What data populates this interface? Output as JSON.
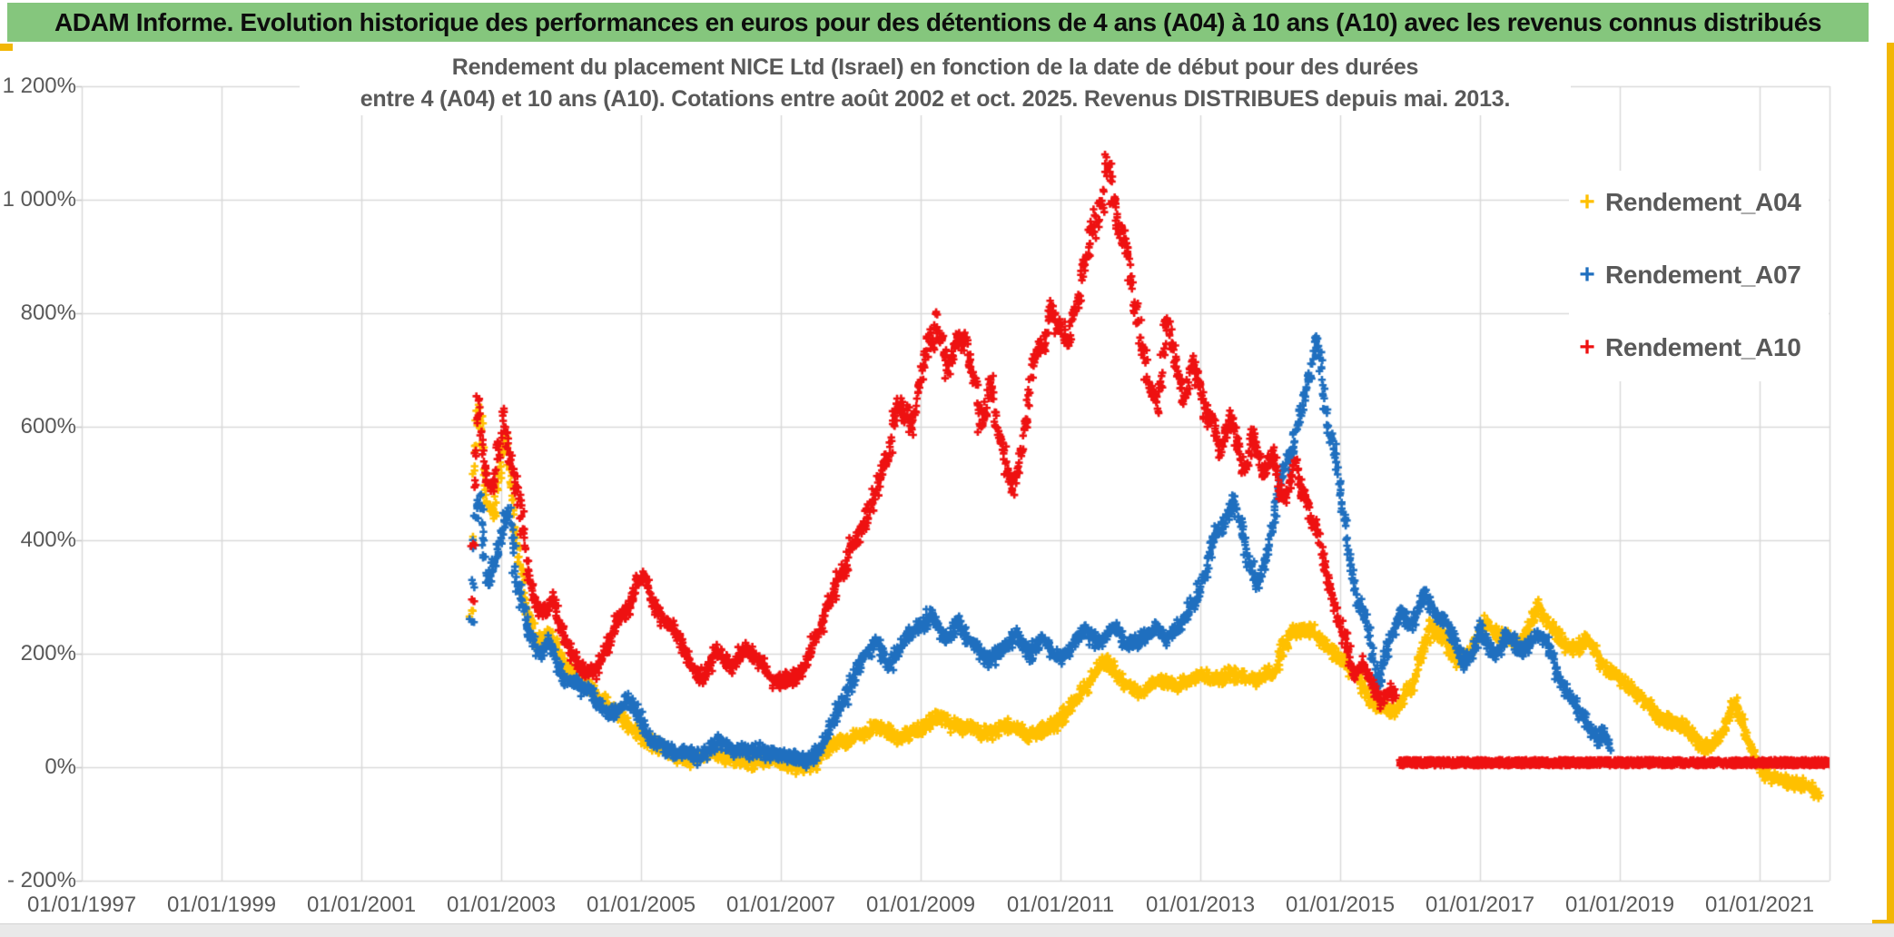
{
  "header": {
    "title": "ADAM Informe. Evolution historique des performances en euros pour des détentions de 4 ans (A04) à 10 ans (A10) avec les revenus connus distribués",
    "bg_color": "#85C67D",
    "text_color": "#0d0d0d"
  },
  "accents": {
    "gold": "#F2B705",
    "grid_color": "#D9D9D9",
    "axis_text_color": "#595959"
  },
  "chart_data": {
    "type": "scatter",
    "marker": "plus",
    "title_lines": [
      "Rendement du placement NICE Ltd (Israel) en fonction de la date de début pour des durées",
      "entre 4 (A04) et 10 ans (A10). Cotations entre août 2002 et oct. 2025. Revenus DISTRIBUES depuis mai. 2013."
    ],
    "grid": "on",
    "legend_position": "right-top",
    "x_axis": {
      "tick_labels": [
        "01/01/1997",
        "01/01/1999",
        "01/01/2001",
        "01/01/2003",
        "01/01/2005",
        "01/01/2007",
        "01/01/2009",
        "01/01/2011",
        "01/01/2013",
        "01/01/2015",
        "01/01/2017",
        "01/01/2019",
        "01/01/2021"
      ],
      "tick_years": [
        1997,
        1999,
        2001,
        2003,
        2005,
        2007,
        2009,
        2011,
        2013,
        2015,
        2017,
        2019,
        2021
      ],
      "range_years": [
        1997,
        2023
      ]
    },
    "y_axis": {
      "tick_labels": [
        "1 200%",
        "1 000%",
        "800%",
        "600%",
        "400%",
        "200%",
        "0%",
        "- 200%"
      ],
      "tick_values": [
        1200,
        1000,
        800,
        600,
        400,
        200,
        0,
        -200
      ],
      "range_pct": [
        -200,
        1200
      ],
      "grid_step_pct": 200
    },
    "series": [
      {
        "name": "Rendement_A04",
        "color": "#FFC000",
        "volatility": 9,
        "anchors_t": [
          2002.58,
          2002.62,
          2002.68,
          2002.78,
          2002.9,
          2003.0,
          2003.08,
          2003.2,
          2003.35,
          2003.5,
          2003.7,
          2003.95,
          2004.2,
          2004.5,
          2004.8,
          2005.1,
          2005.4,
          2005.7,
          2006.0,
          2006.3,
          2006.6,
          2006.9,
          2007.2,
          2007.5,
          2007.8,
          2008.1,
          2008.4,
          2008.7,
          2009.0,
          2009.3,
          2009.6,
          2009.9,
          2010.2,
          2010.5,
          2010.8,
          2011.1,
          2011.4,
          2011.65,
          2011.9,
          2012.15,
          2012.4,
          2012.65,
          2012.9,
          2013.2,
          2013.5,
          2013.8,
          2014.05,
          2014.3,
          2014.55,
          2014.8,
          2015.05,
          2015.3,
          2015.55,
          2015.8,
          2016.05,
          2016.3,
          2016.5,
          2016.7,
          2016.9,
          2017.1,
          2017.35,
          2017.6,
          2017.85,
          2018.05,
          2018.3,
          2018.55,
          2018.8,
          2019.05,
          2019.3,
          2019.6,
          2019.9,
          2020.2,
          2020.45,
          2020.65,
          2020.85,
          2021.05,
          2021.3,
          2021.55,
          2021.85
        ],
        "anchors_v": [
          280,
          540,
          660,
          480,
          430,
          540,
          570,
          420,
          290,
          215,
          235,
          170,
          150,
          115,
          70,
          45,
          25,
          12,
          25,
          12,
          8,
          18,
          2,
          12,
          40,
          55,
          70,
          55,
          70,
          90,
          70,
          60,
          70,
          55,
          65,
          95,
          150,
          190,
          150,
          130,
          155,
          140,
          150,
          155,
          160,
          155,
          175,
          230,
          245,
          210,
          190,
          150,
          105,
          95,
          150,
          250,
          225,
          185,
          205,
          255,
          225,
          215,
          290,
          245,
          205,
          225,
          175,
          150,
          120,
          85,
          75,
          40,
          55,
          120,
          40,
          -5,
          -20,
          -25,
          -45
        ]
      },
      {
        "name": "Rendement_A07",
        "color": "#1F6FBF",
        "volatility": 12,
        "anchors_t": [
          2002.58,
          2002.63,
          2002.7,
          2002.8,
          2002.92,
          2003.02,
          2003.1,
          2003.22,
          2003.38,
          2003.55,
          2003.7,
          2003.9,
          2004.1,
          2004.35,
          2004.6,
          2004.85,
          2005.1,
          2005.35,
          2005.6,
          2005.85,
          2006.1,
          2006.35,
          2006.6,
          2006.85,
          2007.1,
          2007.35,
          2007.55,
          2007.75,
          2007.95,
          2008.15,
          2008.35,
          2008.55,
          2008.75,
          2008.95,
          2009.15,
          2009.35,
          2009.55,
          2009.75,
          2009.95,
          2010.15,
          2010.35,
          2010.55,
          2010.75,
          2010.95,
          2011.15,
          2011.35,
          2011.55,
          2011.75,
          2011.95,
          2012.15,
          2012.35,
          2012.55,
          2012.75,
          2012.95,
          2013.15,
          2013.35,
          2013.5,
          2013.65,
          2013.8,
          2013.95,
          2014.1,
          2014.3,
          2014.5,
          2014.65,
          2014.8,
          2014.95,
          2015.1,
          2015.25,
          2015.4,
          2015.55,
          2015.7,
          2015.85,
          2016.0,
          2016.2,
          2016.4,
          2016.6,
          2016.8,
          2017.0,
          2017.2,
          2017.4,
          2017.6,
          2017.8,
          2018.0,
          2018.15,
          2018.35,
          2018.55,
          2018.68,
          2018.78,
          2018.85
        ],
        "anchors_v": [
          260,
          430,
          470,
          330,
          370,
          430,
          460,
          340,
          250,
          200,
          225,
          155,
          140,
          120,
          100,
          115,
          55,
          35,
          28,
          22,
          42,
          28,
          38,
          28,
          22,
          12,
          30,
          80,
          130,
          185,
          225,
          180,
          225,
          255,
          270,
          225,
          250,
          210,
          180,
          210,
          240,
          200,
          230,
          185,
          220,
          245,
          210,
          250,
          215,
          222,
          248,
          235,
          262,
          305,
          380,
          440,
          470,
          400,
          330,
          375,
          480,
          565,
          650,
          745,
          625,
          540,
          415,
          295,
          245,
          150,
          225,
          270,
          250,
          310,
          268,
          228,
          175,
          248,
          198,
          232,
          208,
          225,
          210,
          150,
          115,
          75,
          40,
          62,
          30
        ]
      },
      {
        "name": "Rendement_A10",
        "color": "#EE1111",
        "volatility": 16,
        "anchors_t": [
          2002.58,
          2002.62,
          2002.67,
          2002.75,
          2002.87,
          2002.97,
          2003.03,
          2003.12,
          2003.22,
          2003.32,
          2003.45,
          2003.6,
          2003.75,
          2003.92,
          2004.1,
          2004.3,
          2004.5,
          2004.7,
          2004.9,
          2005.05,
          2005.2,
          2005.38,
          2005.55,
          2005.72,
          2005.9,
          2006.08,
          2006.28,
          2006.48,
          2006.68,
          2006.88,
          2007.08,
          2007.28,
          2007.48,
          2007.68,
          2007.88,
          2008.08,
          2008.28,
          2008.48,
          2008.68,
          2008.88,
          2009.05,
          2009.22,
          2009.4,
          2009.55,
          2009.7,
          2009.85,
          2010.0,
          2010.15,
          2010.3,
          2010.45,
          2010.6,
          2010.75,
          2010.9,
          2011.0,
          2011.12,
          2011.25,
          2011.4,
          2011.55,
          2011.66,
          2011.76,
          2011.86,
          2011.96,
          2012.1,
          2012.25,
          2012.38,
          2012.52,
          2012.62,
          2012.75,
          2012.88,
          2013.0,
          2013.15,
          2013.3,
          2013.45,
          2013.6,
          2013.75,
          2013.9,
          2014.05,
          2014.2,
          2014.35,
          2014.5,
          2014.65,
          2014.8,
          2014.95,
          2015.08,
          2015.18,
          2015.32,
          2015.45,
          2015.6,
          2015.72,
          2015.8
        ],
        "anchors_v": [
          300,
          500,
          640,
          560,
          480,
          540,
          610,
          555,
          480,
          420,
          310,
          268,
          292,
          220,
          172,
          160,
          205,
          262,
          305,
          340,
          288,
          252,
          245,
          182,
          162,
          202,
          182,
          212,
          192,
          162,
          150,
          158,
          215,
          285,
          345,
          405,
          455,
          555,
          645,
          605,
          700,
          780,
          700,
          765,
          705,
          605,
          665,
          575,
          475,
          565,
          705,
          785,
          825,
          765,
          705,
          855,
          955,
          1005,
          1080,
          1005,
          935,
          950,
          825,
          705,
          625,
          790,
          745,
          655,
          705,
          690,
          620,
          565,
          630,
          520,
          580,
          505,
          545,
          470,
          520,
          490,
          420,
          340,
          275,
          225,
          160,
          185,
          140,
          110,
          135,
          120
        ],
        "flat_segment": {
          "t_start": 2015.85,
          "t_end": 2022.12,
          "v": 8
        }
      }
    ]
  }
}
